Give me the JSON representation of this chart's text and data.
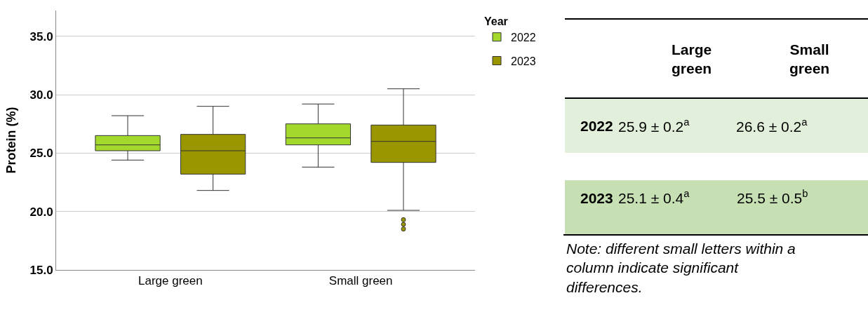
{
  "chart_data": [
    {
      "type": "box",
      "ylabel": "Protein (%)",
      "legend_title": "Year",
      "categories": [
        "Large green",
        "Small green"
      ],
      "ylim": [
        15,
        37.2
      ],
      "yticks": [
        {
          "value": 15,
          "label": "15.0"
        },
        {
          "value": 20,
          "label": "20.0"
        },
        {
          "value": 25,
          "label": "25.0"
        },
        {
          "value": 30,
          "label": "30.0"
        },
        {
          "value": 35,
          "label": "35.0"
        }
      ],
      "grid": "y",
      "legend": "top right",
      "series": [
        {
          "name": "2022",
          "color": "#a3d82c",
          "boxes": [
            {
              "low": 24.4,
              "q1": 25.2,
              "median": 25.7,
              "q3": 26.5,
              "high": 28.2
            },
            {
              "low": 23.8,
              "q1": 25.7,
              "median": 26.3,
              "q3": 27.5,
              "high": 29.2
            }
          ]
        },
        {
          "name": "2023",
          "color": "#9a9600",
          "boxes": [
            {
              "low": 21.8,
              "q1": 23.2,
              "median": 25.2,
              "q3": 26.6,
              "high": 29.0
            },
            {
              "low": 20.1,
              "q1": 24.2,
              "median": 26.0,
              "q3": 27.4,
              "high": 30.5,
              "outliers": [
                19.3,
                18.9,
                18.5
              ]
            }
          ]
        }
      ]
    },
    {
      "type": "other",
      "categories": [
        "Large green",
        "Small green"
      ],
      "y_categories": [
        "2022",
        "2023"
      ],
      "colors": [
        "#e2efda",
        "#c6e0b4"
      ],
      "cell_labels": [
        [
          "25.9 ± 0.2$^{a}$",
          "26.6 ± 0.2$^{a}$"
        ],
        [
          "25.1 ± 0.4$^{a}$",
          "25.5 ± 0.5$^{b}$"
        ]
      ],
      "annotations": [
        "Note: different small letters within a column indicate significant differences."
      ]
    }
  ]
}
